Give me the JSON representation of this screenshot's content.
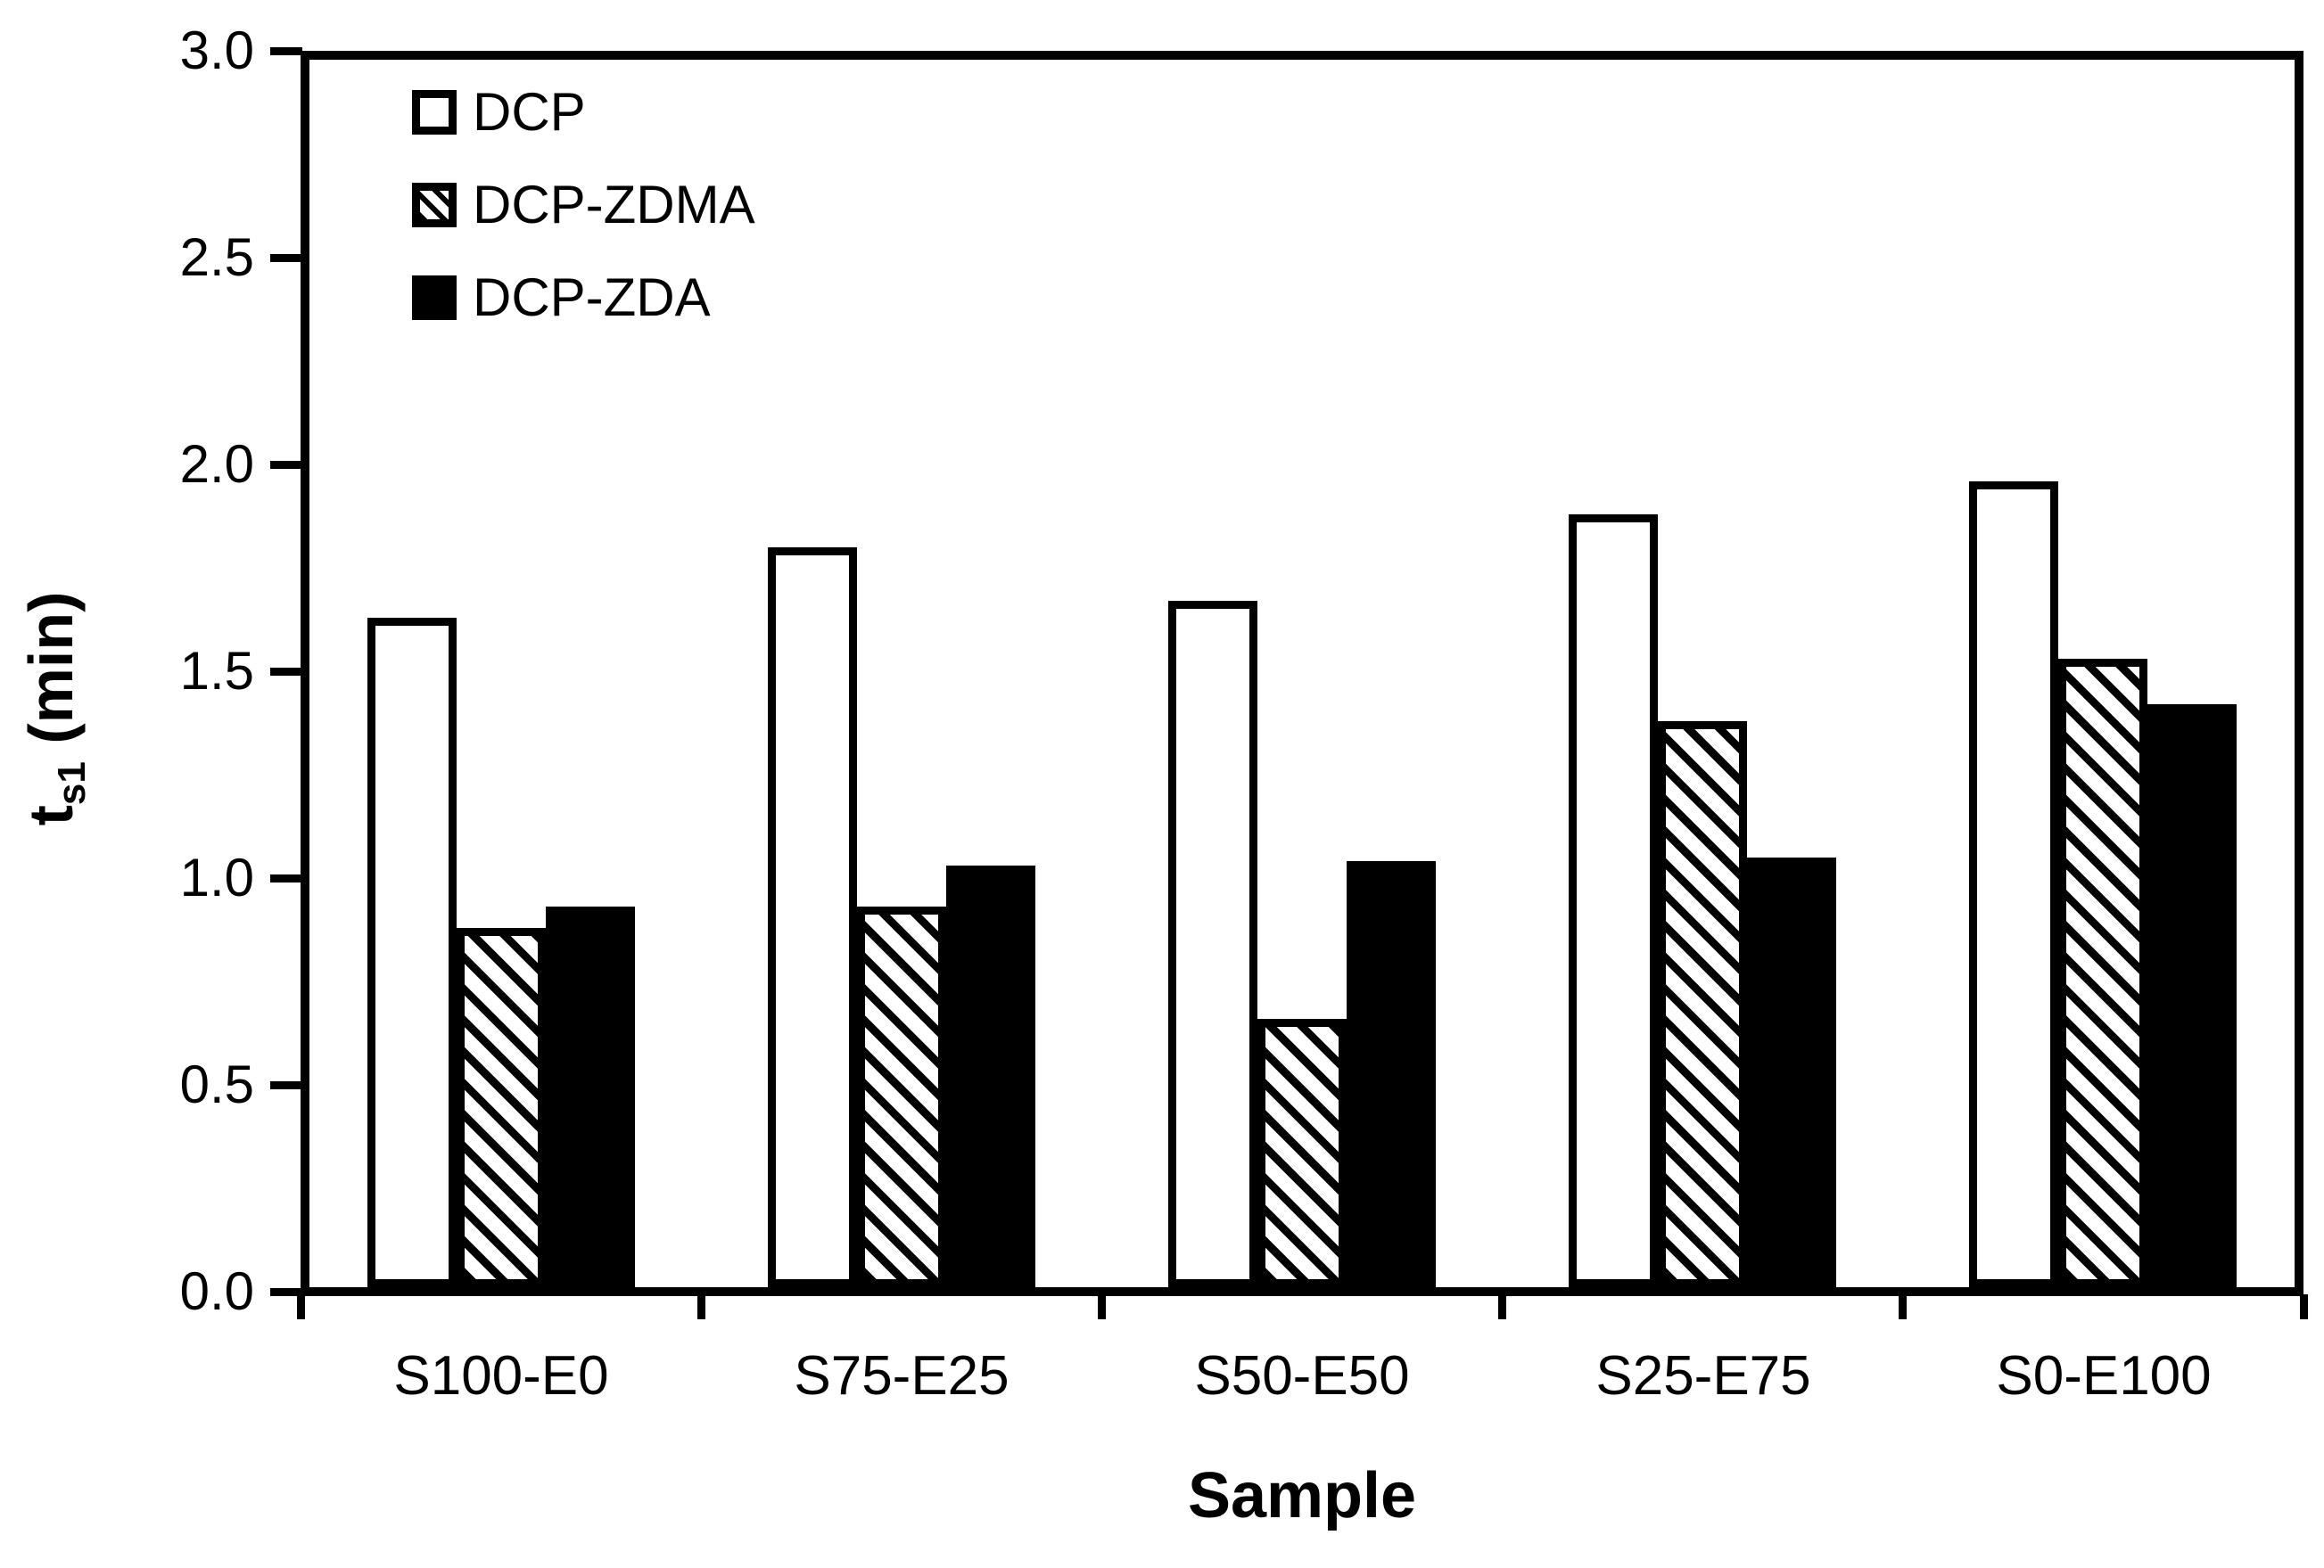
{
  "figure": {
    "background": "#ffffff",
    "ink_color": "#000000"
  },
  "axes": {
    "y": {
      "symbol": "t",
      "subscript": "s1",
      "unit": " (min)",
      "tick_labels": [
        "0.0",
        "0.5",
        "1.0",
        "1.5",
        "2.0",
        "2.5",
        "3.0"
      ]
    },
    "x": {
      "title": "Sample"
    }
  },
  "chart_data": {
    "type": "bar",
    "title": "",
    "xlabel": "Sample",
    "ylabel": "t_s1 (min)",
    "categories": [
      "S100-E0",
      "S75-E25",
      "S50-E50",
      "S25-E75",
      "S0-E100"
    ],
    "series": [
      {
        "name": "DCP",
        "fill": "white",
        "values": [
          1.63,
          1.8,
          1.67,
          1.88,
          1.96
        ]
      },
      {
        "name": "DCP-ZDMA",
        "fill": "hatch",
        "values": [
          0.88,
          0.93,
          0.66,
          1.38,
          1.53
        ]
      },
      {
        "name": "DCP-ZDA",
        "fill": "black",
        "values": [
          0.93,
          1.03,
          1.04,
          1.05,
          1.42
        ]
      }
    ],
    "ylim": [
      0,
      3
    ],
    "ytick_step": 0.5,
    "grid": false,
    "legend_position": "inside top-left",
    "bar_outline": "black",
    "hatch_style": "diagonal-forward"
  }
}
